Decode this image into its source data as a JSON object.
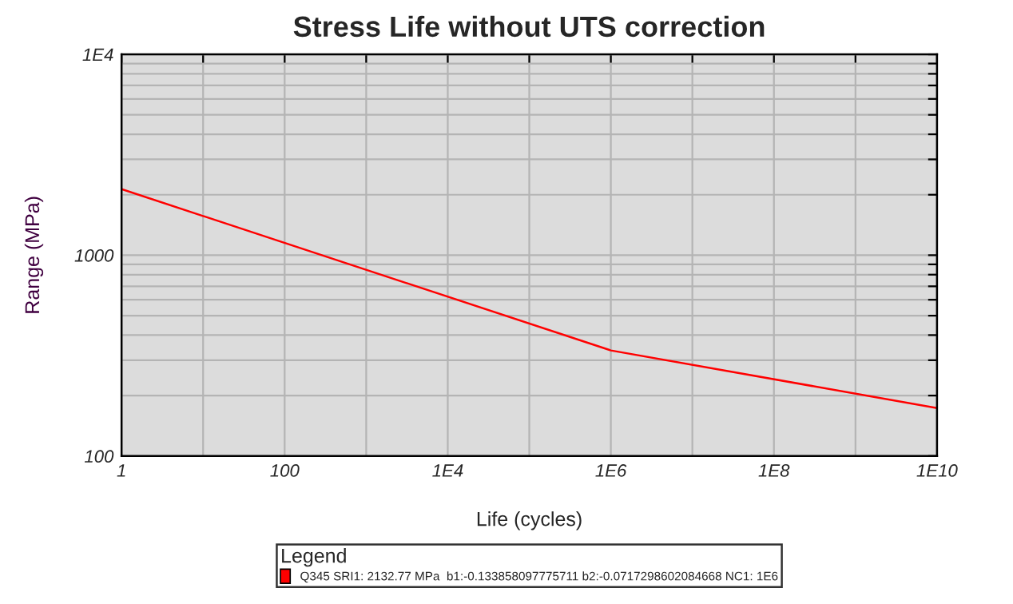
{
  "chart_data": {
    "type": "line",
    "title": "Stress Life without UTS correction",
    "xlabel": "Life (cycles)",
    "ylabel": "Range (MPa)",
    "legend_title": "Legend",
    "log": "xy",
    "series": [
      {
        "name": "Q345 SRI1: 2132.77 MPa  b1:-0.133858097775711 b2:-0.0717298602084668 NC1: 1E6",
        "color": "#ff0000",
        "x": [
          1,
          1000000,
          10000000000
        ],
        "values": [
          2132.77,
          335.5,
          173.3
        ]
      }
    ],
    "xlim": [
      1,
      10000000000
    ],
    "xticks": [
      1,
      {
        "value": 10,
        "label": null
      },
      100,
      {
        "value": 1000,
        "label": null
      },
      {
        "value": 10000,
        "label": "1E4"
      },
      {
        "value": 100000,
        "label": null
      },
      {
        "value": 1000000,
        "label": "1E6"
      },
      {
        "value": 10000000,
        "label": null
      },
      {
        "value": 100000000,
        "label": "1E8"
      },
      {
        "value": 1000000000,
        "label": null
      },
      {
        "value": 10000000000,
        "label": "1E10"
      }
    ],
    "ylim": [
      100,
      10000
    ],
    "yticks": [
      100,
      {
        "value": 200,
        "label": null
      },
      {
        "value": 300,
        "label": null
      },
      {
        "value": 400,
        "label": null
      },
      {
        "value": 500,
        "label": null
      },
      {
        "value": 600,
        "label": null
      },
      {
        "value": 700,
        "label": null
      },
      {
        "value": 800,
        "label": null
      },
      {
        "value": 900,
        "label": null
      },
      1000,
      {
        "value": 2000,
        "label": null
      },
      {
        "value": 3000,
        "label": null
      },
      {
        "value": 4000,
        "label": null
      },
      {
        "value": 5000,
        "label": null
      },
      {
        "value": 6000,
        "label": null
      },
      {
        "value": 7000,
        "label": null
      },
      {
        "value": 8000,
        "label": null
      },
      {
        "value": 9000,
        "label": null
      },
      {
        "value": 10000,
        "label": "1E4"
      }
    ],
    "grid": true,
    "legend": "bottom",
    "marker": "none",
    "line_style": "solid"
  }
}
